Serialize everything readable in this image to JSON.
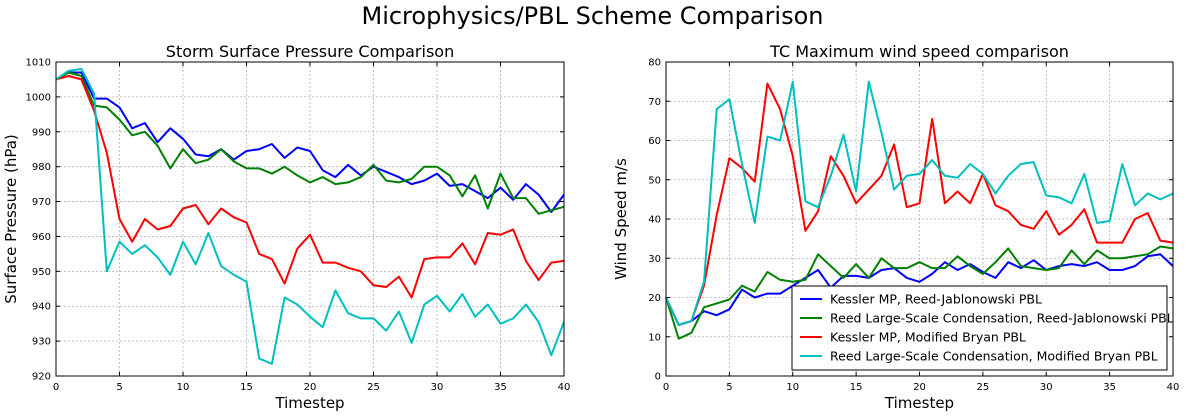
{
  "suptitle": "Microphysics/PBL Scheme Comparison",
  "chart_data": [
    {
      "type": "line",
      "title": "Storm Surface Pressure Comparison",
      "xlabel": "Timestep",
      "ylabel": "Surface Pressure (hPa)",
      "xlim": [
        0,
        40
      ],
      "ylim": [
        920,
        1010
      ],
      "xticks": [
        0,
        5,
        10,
        15,
        20,
        25,
        30,
        35,
        40
      ],
      "yticks": [
        920,
        930,
        940,
        950,
        960,
        970,
        980,
        990,
        1000,
        1010
      ],
      "grid": true,
      "x": [
        0,
        1,
        2,
        3,
        4,
        5,
        6,
        7,
        8,
        9,
        10,
        11,
        12,
        13,
        14,
        15,
        16,
        17,
        18,
        19,
        20,
        21,
        22,
        23,
        24,
        25,
        26,
        27,
        28,
        29,
        30,
        31,
        32,
        33,
        34,
        35,
        36,
        37,
        38,
        39,
        40
      ],
      "series": [
        {
          "color": "#0000ff",
          "values": [
            1005,
            1007,
            1007,
            999.5,
            999.5,
            997,
            991,
            992.5,
            987,
            991,
            988,
            983.5,
            983,
            985,
            982,
            984.5,
            985,
            986.5,
            982.5,
            985.5,
            984.5,
            979,
            977,
            980.5,
            977.5,
            980,
            978.5,
            977,
            975,
            976,
            978,
            974.5,
            975,
            973,
            971,
            974,
            970.5,
            975,
            972,
            967,
            972
          ]
        },
        {
          "color": "#008000",
          "values": [
            1005,
            1007,
            1006,
            997.5,
            997,
            993.5,
            989,
            990,
            986,
            979.5,
            985,
            981,
            982,
            985,
            981.5,
            979.5,
            979.5,
            978,
            980,
            977.5,
            975.5,
            977,
            975,
            975.5,
            977,
            980.5,
            976,
            975.5,
            976.5,
            980,
            980,
            977.5,
            971.5,
            977.5,
            968,
            978,
            971,
            971,
            966.5,
            967.5,
            968.5
          ]
        },
        {
          "color": "#ff0000",
          "values": [
            1005,
            1006,
            1005,
            996,
            984,
            965,
            958.5,
            965,
            962,
            963,
            968,
            969,
            963.5,
            968,
            965.5,
            964,
            955,
            953.5,
            946.5,
            956.5,
            960.5,
            952.5,
            952.5,
            951,
            950,
            946,
            945.5,
            948.5,
            942.5,
            953.5,
            954,
            954,
            958,
            952,
            961,
            960.5,
            962,
            953,
            947.5,
            952.5,
            953
          ]
        },
        {
          "color": "#00bfbf",
          "values": [
            1005,
            1007.5,
            1008,
            1001,
            950,
            958.5,
            955,
            957.5,
            954,
            949,
            958.5,
            952,
            961,
            951.5,
            949,
            947,
            925,
            923.5,
            942.5,
            940.5,
            937,
            934,
            944.5,
            938,
            936.5,
            936.5,
            933,
            938.5,
            929.5,
            940.5,
            943,
            938.5,
            943.5,
            937,
            940.5,
            935,
            936.5,
            940.5,
            935.5,
            926,
            935.5
          ]
        }
      ]
    },
    {
      "type": "line",
      "title": "TC Maximum wind speed comparison",
      "xlabel": "Timestep",
      "ylabel": "Wind Speed m/s",
      "xlim": [
        0,
        40
      ],
      "ylim": [
        0,
        80
      ],
      "xticks": [
        0,
        5,
        10,
        15,
        20,
        25,
        30,
        35,
        40
      ],
      "yticks": [
        0,
        10,
        20,
        30,
        40,
        50,
        60,
        70,
        80
      ],
      "grid": true,
      "legend": "lower-right",
      "x": [
        0,
        1,
        2,
        3,
        4,
        5,
        6,
        7,
        8,
        9,
        10,
        11,
        12,
        13,
        14,
        15,
        16,
        17,
        18,
        19,
        20,
        21,
        22,
        23,
        24,
        25,
        26,
        27,
        28,
        29,
        30,
        31,
        32,
        33,
        34,
        35,
        36,
        37,
        38,
        39,
        40
      ],
      "series": [
        {
          "name": "Kessler MP, Reed-Jablonowski PBL",
          "color": "#0000ff",
          "values": [
            20,
            13,
            14,
            16.5,
            15.5,
            17,
            22,
            20,
            21,
            21,
            23,
            25,
            27,
            22.5,
            25.5,
            25.5,
            25,
            27,
            27.5,
            25,
            24,
            26,
            29,
            27,
            28.5,
            26.5,
            25,
            29,
            27.5,
            29.5,
            27,
            28,
            28.5,
            28,
            29,
            27,
            27,
            28,
            30.5,
            31,
            28
          ]
        },
        {
          "name": "Reed Large-Scale Condensation, Reed-Jablonowski PBL",
          "color": "#008000",
          "values": [
            20,
            9.5,
            11,
            17.5,
            18.5,
            19.5,
            23,
            21.5,
            26.5,
            24.5,
            24,
            24.5,
            31,
            28,
            25,
            28.5,
            25,
            30,
            27.5,
            27.5,
            29,
            27.5,
            27.5,
            30.5,
            28,
            26,
            29,
            32.5,
            28,
            27.5,
            27,
            27.5,
            32,
            28.5,
            32,
            30,
            30,
            30.5,
            31,
            33,
            32.5
          ]
        },
        {
          "name": "Kessler MP, Modified Bryan PBL",
          "color": "#ff0000",
          "values": [
            20,
            13,
            14,
            23,
            41,
            55.5,
            53,
            49.5,
            74.5,
            68,
            56,
            37,
            42,
            56,
            51,
            44,
            47.5,
            51,
            59,
            43,
            44,
            65.5,
            44,
            47,
            44,
            51.5,
            43.5,
            42,
            38.5,
            37.5,
            42,
            36,
            38.5,
            42.5,
            34,
            34,
            34,
            40,
            41.5,
            34.5,
            34
          ]
        },
        {
          "name": "Reed Large-Scale Condensation, Modified Bryan PBL",
          "color": "#00bfbf",
          "values": [
            20,
            13,
            14,
            24,
            68,
            70.5,
            54,
            39,
            61,
            60,
            75,
            44.5,
            43,
            51,
            61.5,
            47,
            75,
            62,
            47.5,
            51,
            51.5,
            55,
            51,
            50.5,
            54,
            51.5,
            46.5,
            51,
            54,
            54.5,
            46,
            45.5,
            44,
            51.5,
            39,
            39.5,
            54,
            43.5,
            46.5,
            45,
            46.5
          ]
        }
      ]
    }
  ]
}
